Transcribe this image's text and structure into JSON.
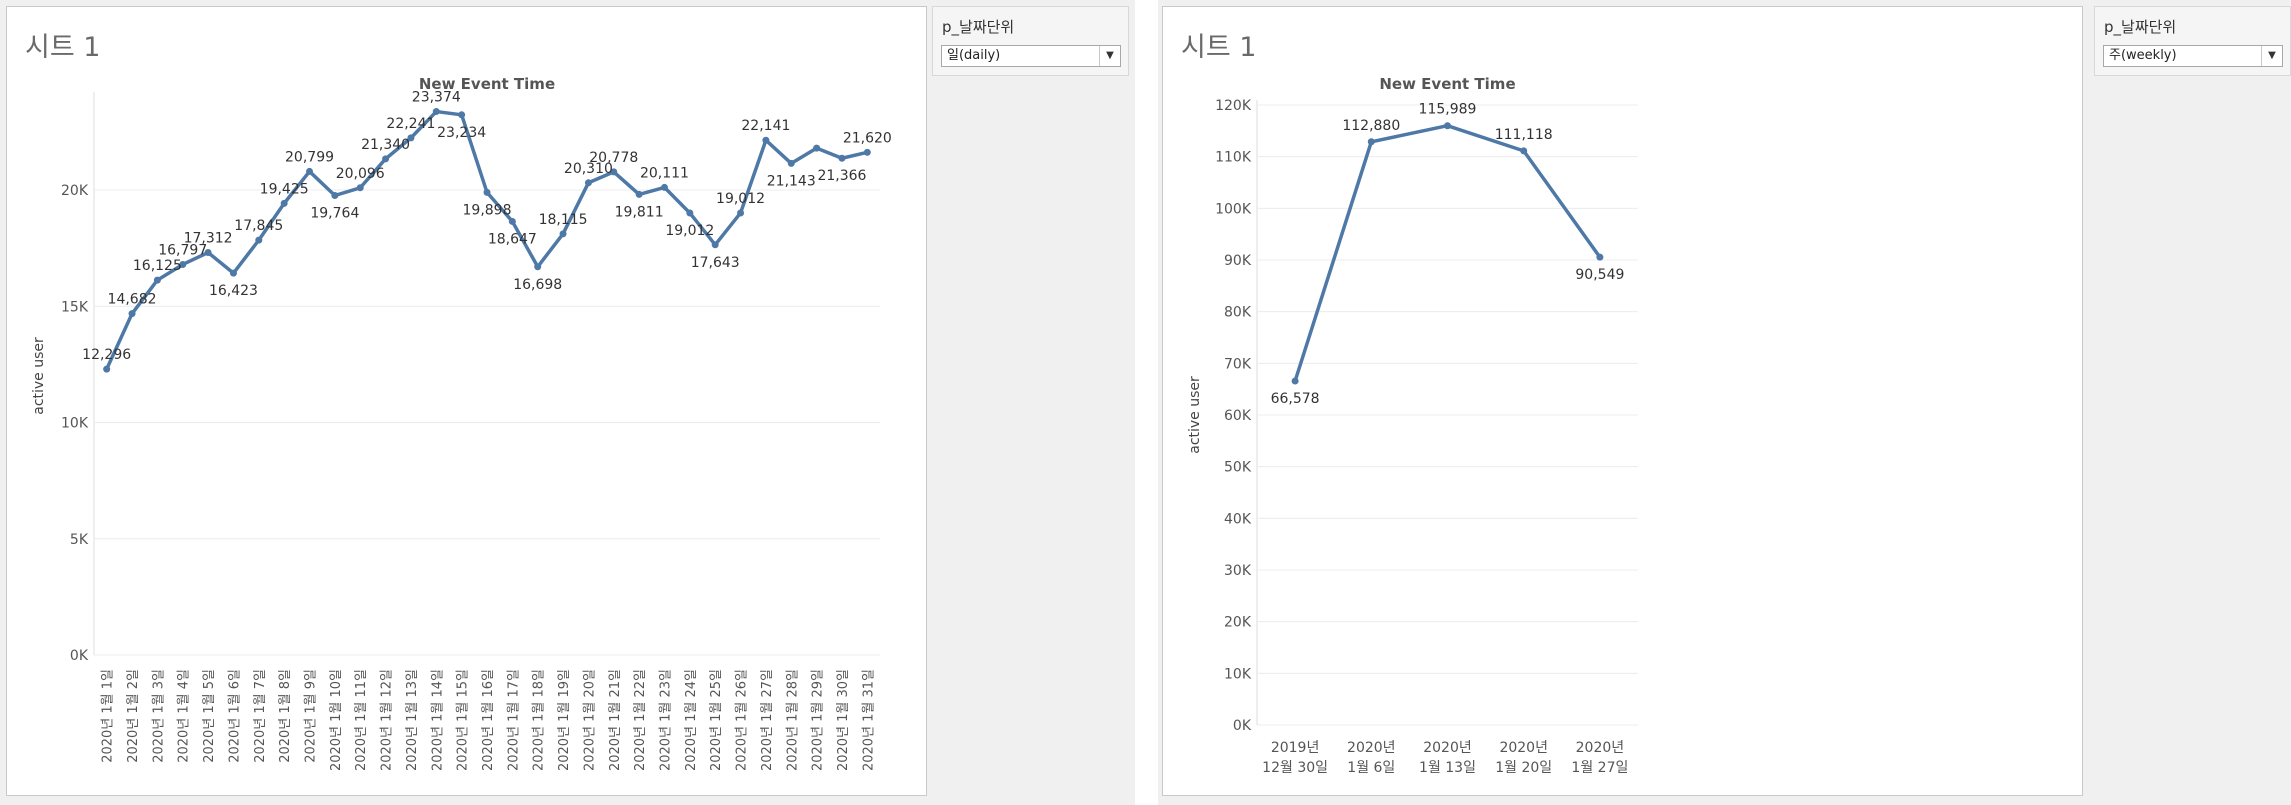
{
  "left": {
    "sheet_title": "시트 1",
    "filter": {
      "label": "p_날짜단위",
      "value": "일(daily)"
    }
  },
  "right": {
    "sheet_title": "시트 1",
    "filter": {
      "label": "p_날짜단위",
      "value": "주(weekly)"
    }
  },
  "colors": {
    "line": "#4e79a7",
    "grid": "#ececec",
    "axis_text": "#555555"
  },
  "chart_data": [
    {
      "type": "line",
      "title": "New Event Time",
      "xlabel": "",
      "ylabel": "active user",
      "ylim": [
        0,
        24000
      ],
      "yticks": [
        0,
        5000,
        10000,
        15000,
        20000
      ],
      "ytick_labels": [
        "0K",
        "5K",
        "10K",
        "15K",
        "20K"
      ],
      "grid": true,
      "categories": [
        "2020년 1월 1일",
        "2020년 1월 2일",
        "2020년 1월 3일",
        "2020년 1월 4일",
        "2020년 1월 5일",
        "2020년 1월 6일",
        "2020년 1월 7일",
        "2020년 1월 8일",
        "2020년 1월 9일",
        "2020년 1월 10일",
        "2020년 1월 11일",
        "2020년 1월 12일",
        "2020년 1월 13일",
        "2020년 1월 14일",
        "2020년 1월 15일",
        "2020년 1월 16일",
        "2020년 1월 17일",
        "2020년 1월 18일",
        "2020년 1월 19일",
        "2020년 1월 20일",
        "2020년 1월 21일",
        "2020년 1월 22일",
        "2020년 1월 23일",
        "2020년 1월 24일",
        "2020년 1월 25일",
        "2020년 1월 26일",
        "2020년 1월 27일",
        "2020년 1월 28일",
        "2020년 1월 29일",
        "2020년 1월 30일",
        "2020년 1월 31일"
      ],
      "values": [
        12296,
        14682,
        16125,
        16797,
        17312,
        16423,
        17845,
        19425,
        20799,
        19764,
        20096,
        21340,
        22241,
        23374,
        23234,
        19898,
        18647,
        16698,
        18115,
        20310,
        20778,
        19811,
        20111,
        19012,
        17643,
        19012,
        22141,
        21143,
        21800,
        21366,
        21620
      ],
      "data_labels": [
        "12,296",
        "14,682",
        "16,125",
        "16,797",
        "17,312",
        "16,423",
        "17,845",
        "19,425",
        "20,799",
        "19,764",
        "20,096",
        "21,340",
        "22,241",
        "23,374",
        "23,234",
        "19,898",
        "18,647",
        "16,698",
        "18,115",
        "20,310",
        "20,778",
        "19,811",
        "20,111",
        "19,012",
        "17,643",
        "19,012",
        "22,141",
        "21,143",
        "",
        "21,366",
        "21,620"
      ]
    },
    {
      "type": "line",
      "title": "New Event Time",
      "xlabel": "",
      "ylabel": "active user",
      "ylim": [
        0,
        120000
      ],
      "yticks": [
        0,
        10000,
        20000,
        30000,
        40000,
        50000,
        60000,
        70000,
        80000,
        90000,
        100000,
        110000,
        120000
      ],
      "ytick_labels": [
        "0K",
        "10K",
        "20K",
        "30K",
        "40K",
        "50K",
        "60K",
        "70K",
        "80K",
        "90K",
        "100K",
        "110K",
        "120K"
      ],
      "grid": true,
      "categories": [
        [
          "2019년",
          "12월 30일"
        ],
        [
          "2020년",
          "1월 6일"
        ],
        [
          "2020년",
          "1월 13일"
        ],
        [
          "2020년",
          "1월 20일"
        ],
        [
          "2020년",
          "1월 27일"
        ]
      ],
      "values": [
        66578,
        112880,
        115989,
        111118,
        90549
      ],
      "data_labels": [
        "66,578",
        "112,880",
        "115,989",
        "111,118",
        "90,549"
      ]
    }
  ]
}
